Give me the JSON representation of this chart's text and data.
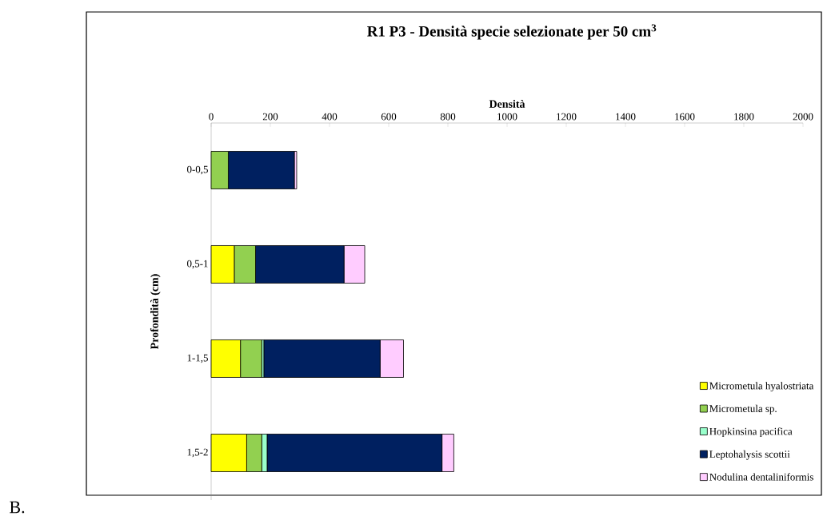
{
  "chart_data": {
    "type": "bar",
    "orientation": "horizontal",
    "stacked": true,
    "title": "R1 P3 - Densità specie selezionate per 50 cm$^{3}$",
    "xlabel": "Densità",
    "ylabel": "Profondità (cm)",
    "categories": [
      "0-0,5",
      "0,5-1",
      "1-1,5",
      "1,5-2"
    ],
    "series": [
      {
        "name": "Micrometula hyalostriata",
        "color": "#ffff00",
        "values": [
          0,
          78,
          99,
          120
        ]
      },
      {
        "name": "Micrometula sp.",
        "color": "#92d050",
        "values": [
          58,
          72,
          72,
          51
        ]
      },
      {
        "name": "Hopkinsina pacifica",
        "color": "#99ffcc",
        "values": [
          0,
          0,
          7,
          18
        ]
      },
      {
        "name": "Leptohalysis scottii",
        "color": "#002060",
        "values": [
          223,
          299,
          393,
          591
        ]
      },
      {
        "name": "Nodulina dentaliniformis",
        "color": "#ffccff",
        "values": [
          8,
          70,
          79,
          40
        ]
      }
    ],
    "xlim": [
      0,
      2000
    ],
    "xticks": [
      0,
      200,
      400,
      600,
      800,
      1000,
      1200,
      1400,
      1600,
      1800,
      2000
    ],
    "legend": "bottom right",
    "annotations": [
      "B."
    ]
  }
}
